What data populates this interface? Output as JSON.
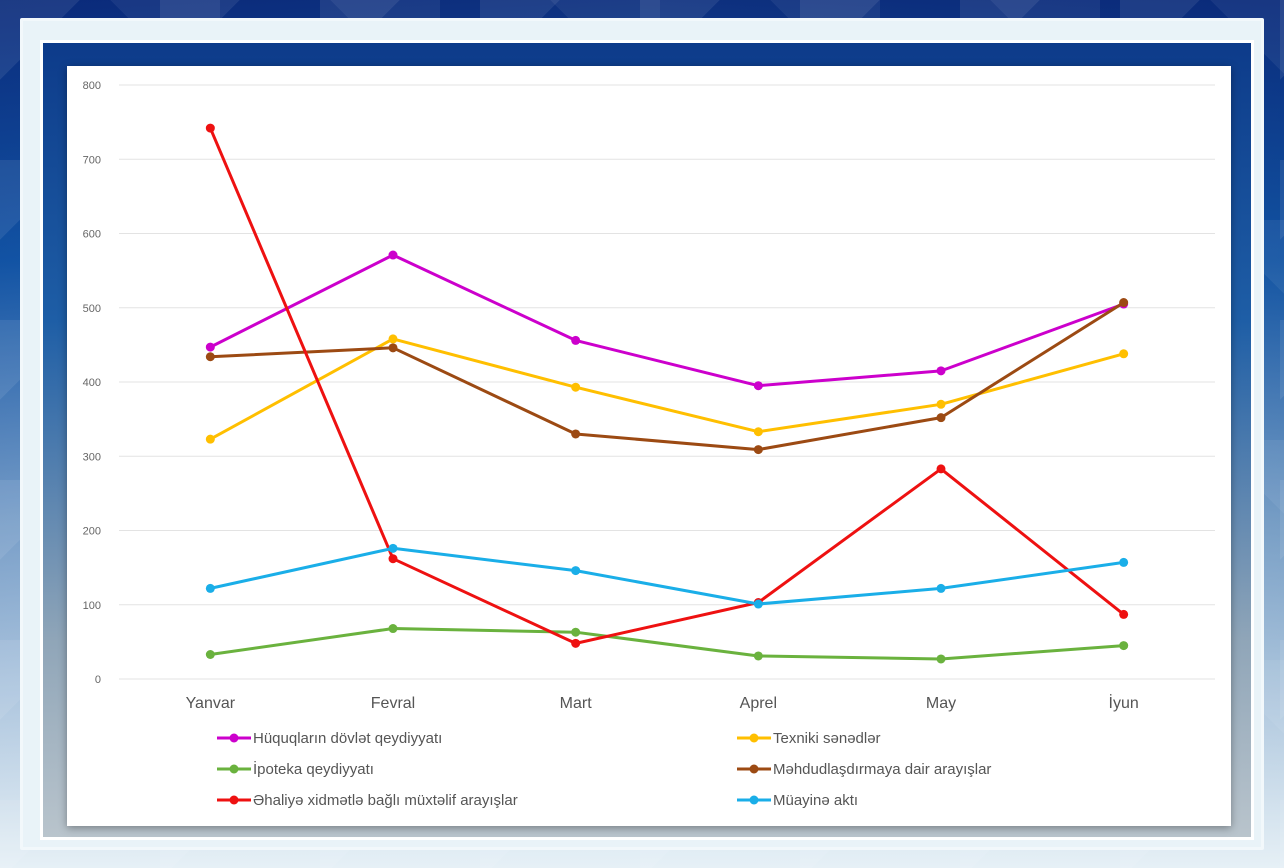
{
  "chart_data": {
    "type": "line",
    "categories": [
      "Yanvar",
      "Fevral",
      "Mart",
      "Aprel",
      "May",
      "İyun"
    ],
    "ylim": [
      0,
      800
    ],
    "yticks": [
      0,
      100,
      200,
      300,
      400,
      500,
      600,
      700,
      800
    ],
    "grid": true,
    "legend_position": "bottom",
    "series": [
      {
        "name": "Hüquqların dövlət qeydiyyatı",
        "color": "#cc00cc",
        "values": [
          447,
          571,
          456,
          395,
          415,
          505
        ]
      },
      {
        "name": "Texniki sənədlər",
        "color": "#ffbf00",
        "values": [
          323,
          458,
          393,
          333,
          370,
          438
        ]
      },
      {
        "name": "İpoteka qeydiyyatı",
        "color": "#6ab23e",
        "values": [
          33,
          68,
          63,
          31,
          27,
          45
        ]
      },
      {
        "name": "Məhdudlaşdırmaya dair arayışlar",
        "color": "#9c4a13",
        "values": [
          434,
          446,
          330,
          309,
          352,
          507
        ]
      },
      {
        "name": "Əhaliyə xidmətlə bağlı müxtəlif arayışlar",
        "color": "#ee1111",
        "values": [
          742,
          162,
          48,
          103,
          283,
          87
        ]
      },
      {
        "name": "Müayinə aktı",
        "color": "#1aaee8",
        "values": [
          122,
          176,
          146,
          101,
          122,
          157
        ]
      }
    ]
  }
}
